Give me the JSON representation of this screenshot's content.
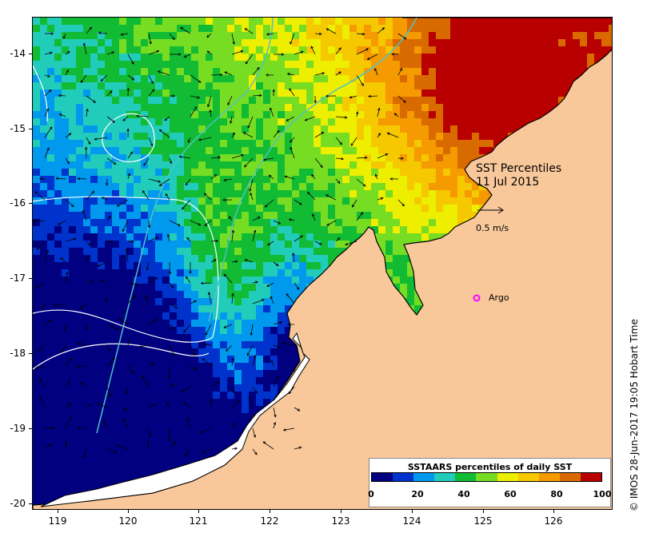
{
  "map": {
    "lon_range": [
      118.65,
      126.78
    ],
    "lat_range": [
      -20.12,
      -13.57
    ],
    "x_ticks": [
      "119",
      "120",
      "121",
      "122",
      "123",
      "124",
      "125",
      "126"
    ],
    "y_ticks": [
      "-14",
      "-15",
      "-16",
      "-17",
      "-18",
      "-19",
      "-20"
    ],
    "land_color": "#f8c89b",
    "coastline_color": "#000000",
    "contour_color": "#ffffff",
    "isobath_color": "#4fc4c4",
    "current_arrow_color": "#000000"
  },
  "overlay": {
    "title_line1": "SST Percentiles",
    "title_line2": "11 Jul 2015",
    "scale_label": "0.5 m/s",
    "argo_label": "Argo",
    "argo_color": "#ff00ff"
  },
  "legend": {
    "title": "SSTAARS percentiles of daily SST",
    "tick_labels": [
      "0",
      "20",
      "40",
      "60",
      "80",
      "100"
    ],
    "colors": [
      "#000080",
      "#0033cc",
      "#0099ee",
      "#22ccbb",
      "#11bb33",
      "#77dd22",
      "#eeee00",
      "#f5c800",
      "#f59a00",
      "#d96a00",
      "#b80000"
    ]
  },
  "credit": "© IMOS 28-Jun-2017 19:05 Hobart Time"
}
